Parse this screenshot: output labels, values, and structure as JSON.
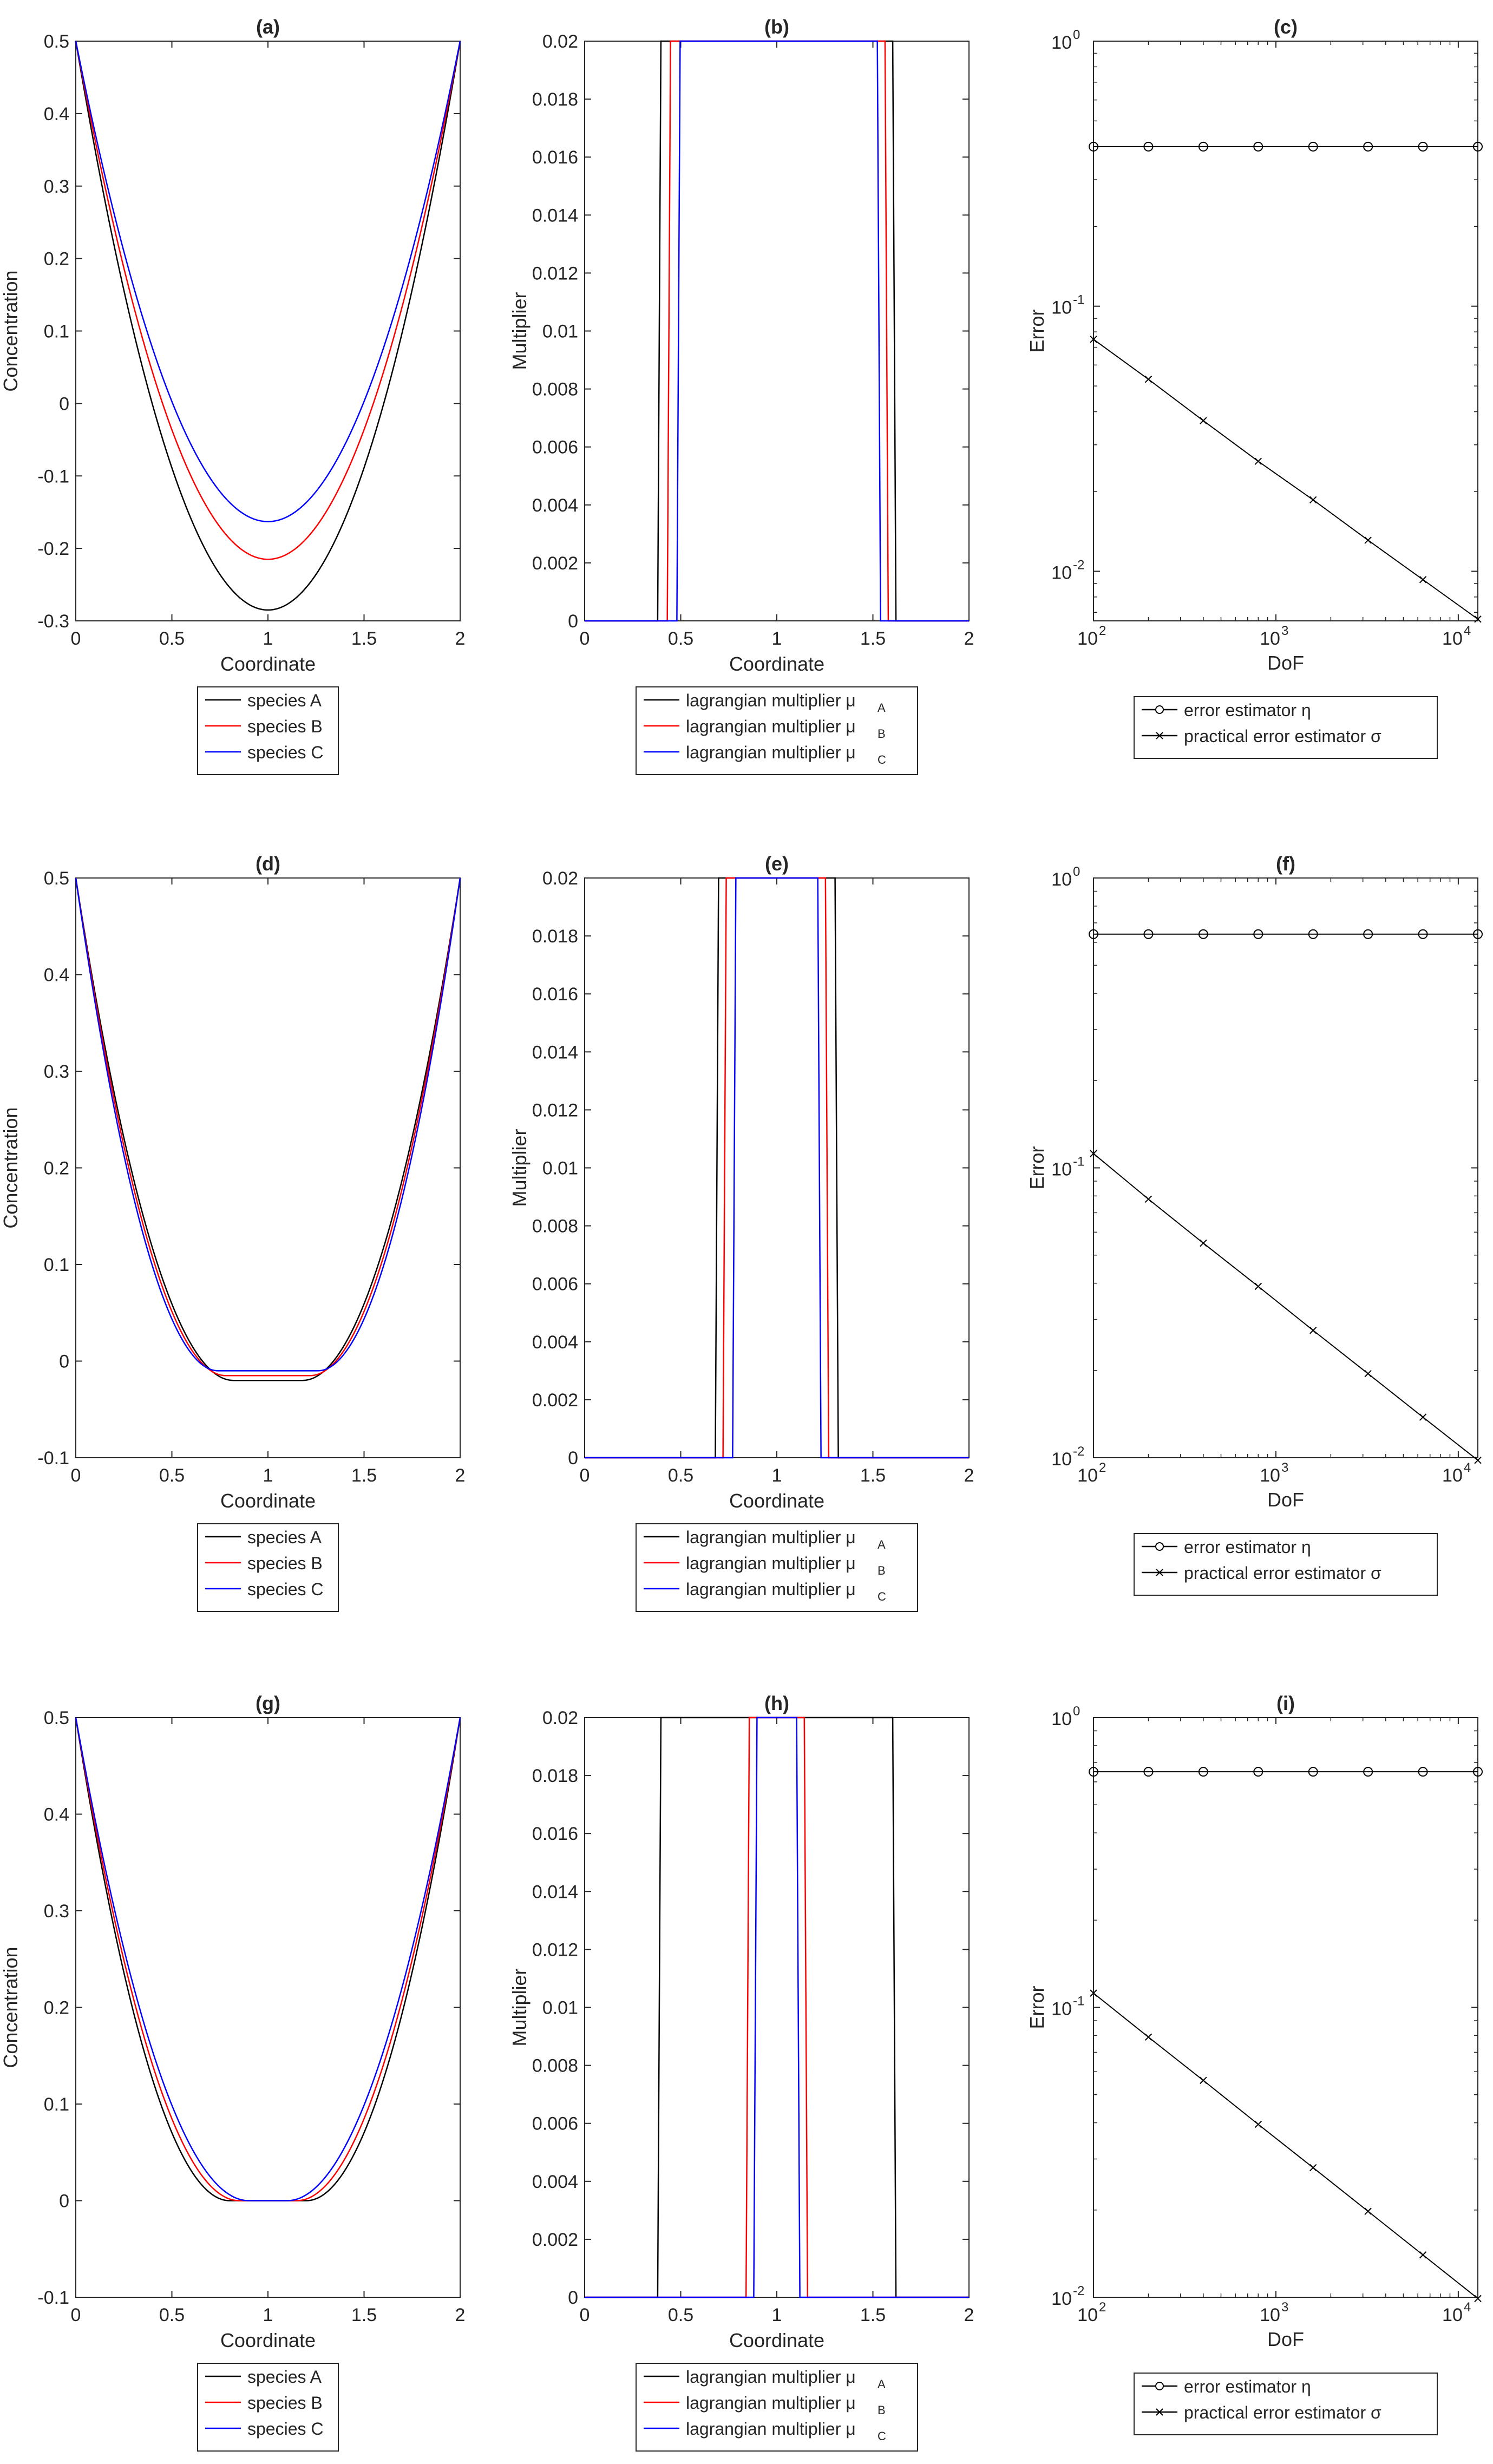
{
  "figure": {
    "colors": {
      "A": "#000000",
      "B": "#ff0000",
      "C": "#0000ff",
      "markers": "#000000"
    }
  },
  "chart_data": [
    {
      "id": "a",
      "type": "line",
      "title": "(a)",
      "xlabel": "Coordinate",
      "ylabel": "Concentration",
      "xlim": [
        0,
        2
      ],
      "ylim": [
        -0.3,
        0.5
      ],
      "xticks": [
        0,
        0.5,
        1,
        1.5,
        2
      ],
      "xtick_labels": [
        "0",
        "0.5",
        "1",
        "1.5",
        "2"
      ],
      "yticks": [
        -0.3,
        -0.2,
        -0.1,
        0,
        0.1,
        0.2,
        0.3,
        0.4,
        0.5
      ],
      "ytick_labels": [
        "-0.3",
        "-0.2",
        "-0.1",
        "0",
        "0.1",
        "0.2",
        "0.3",
        "0.4",
        "0.5"
      ],
      "series": [
        {
          "name": "species A",
          "color": "#000000",
          "kind": "parabola",
          "endpoint": 0.5,
          "minimum": -0.285
        },
        {
          "name": "species B",
          "color": "#ff0000",
          "kind": "parabola",
          "endpoint": 0.5,
          "minimum": -0.215
        },
        {
          "name": "species C",
          "color": "#0000ff",
          "kind": "parabola",
          "endpoint": 0.5,
          "minimum": -0.163
        }
      ],
      "legend": {
        "position": "below",
        "labels": [
          "species A",
          "species B",
          "species C"
        ]
      }
    },
    {
      "id": "b",
      "type": "line",
      "title": "(b)",
      "xlabel": "Coordinate",
      "ylabel": "Multiplier",
      "xlim": [
        0,
        2
      ],
      "ylim": [
        0,
        0.02
      ],
      "xticks": [
        0,
        0.5,
        1,
        1.5,
        2
      ],
      "xtick_labels": [
        "0",
        "0.5",
        "1",
        "1.5",
        "2"
      ],
      "yticks": [
        0,
        0.002,
        0.004,
        0.006,
        0.008,
        0.01,
        0.012,
        0.014,
        0.016,
        0.018,
        0.02
      ],
      "ytick_labels": [
        "0",
        "0.002",
        "0.004",
        "0.006",
        "0.008",
        "0.01",
        "0.012",
        "0.014",
        "0.016",
        "0.018",
        "0.02"
      ],
      "series": [
        {
          "name": "lagrangian multiplier μA",
          "color": "#000000",
          "kind": "step",
          "x_on": 0.38,
          "x_off": 1.62,
          "level": 0.02
        },
        {
          "name": "lagrangian multiplier μB",
          "color": "#ff0000",
          "kind": "step",
          "x_on": 0.43,
          "x_off": 1.58,
          "level": 0.02
        },
        {
          "name": "lagrangian multiplier μC",
          "color": "#0000ff",
          "kind": "step",
          "x_on": 0.48,
          "x_off": 1.54,
          "level": 0.02
        }
      ],
      "legend": {
        "position": "below",
        "labels": [
          "lagrangian multiplier μ",
          "lagrangian multiplier μ",
          "lagrangian multiplier μ"
        ],
        "subscripts": [
          "A",
          "B",
          "C"
        ]
      }
    },
    {
      "id": "c",
      "type": "line",
      "title": "(c)",
      "xlabel": "DoF",
      "ylabel": "Error",
      "log": true,
      "xlim": [
        100,
        12800
      ],
      "ylim": [
        0.0065,
        1
      ],
      "xticks": [
        100,
        1000,
        10000
      ],
      "xtick_labels": [
        "10",
        "10",
        "10"
      ],
      "xtick_exponents": [
        "2",
        "3",
        "4"
      ],
      "yticks": [
        0.01,
        0.1,
        1
      ],
      "ytick_labels": [
        "10",
        "10",
        "10"
      ],
      "ytick_exponents": [
        "-2",
        "-1",
        "0"
      ],
      "series": [
        {
          "name": "error estimator η",
          "marker": "circle",
          "x": [
            100,
            200,
            400,
            800,
            1600,
            3200,
            6400,
            12800
          ],
          "y": [
            0.4,
            0.4,
            0.4,
            0.4,
            0.4,
            0.4,
            0.4,
            0.4
          ]
        },
        {
          "name": "practical error estimator σ",
          "marker": "x",
          "x": [
            100,
            200,
            400,
            800,
            1600,
            3200,
            6400,
            12800
          ],
          "y": [
            0.075,
            0.053,
            0.037,
            0.026,
            0.0186,
            0.0131,
            0.0093,
            0.0066
          ]
        }
      ],
      "legend": {
        "position": "below",
        "labels": [
          "error estimator η",
          "practical error estimator σ"
        ]
      }
    },
    {
      "id": "d",
      "type": "line",
      "title": "(d)",
      "xlabel": "Coordinate",
      "ylabel": "Concentration",
      "xlim": [
        0,
        2
      ],
      "ylim": [
        -0.1,
        0.5
      ],
      "xticks": [
        0,
        0.5,
        1,
        1.5,
        2
      ],
      "xtick_labels": [
        "0",
        "0.5",
        "1",
        "1.5",
        "2"
      ],
      "yticks": [
        -0.1,
        0,
        0.1,
        0.2,
        0.3,
        0.4,
        0.5
      ],
      "ytick_labels": [
        "-0.1",
        "0",
        "0.1",
        "0.2",
        "0.3",
        "0.4",
        "0.5"
      ],
      "series": [
        {
          "name": "species A",
          "color": "#000000",
          "kind": "flatbowl",
          "endpoint": 0.5,
          "minimum": -0.02,
          "flat_half_width": 0.18
        },
        {
          "name": "species B",
          "color": "#ff0000",
          "kind": "flatbowl",
          "endpoint": 0.5,
          "minimum": -0.015,
          "flat_half_width": 0.22
        },
        {
          "name": "species C",
          "color": "#0000ff",
          "kind": "flatbowl",
          "endpoint": 0.5,
          "minimum": -0.01,
          "flat_half_width": 0.26
        }
      ],
      "legend": {
        "position": "below",
        "labels": [
          "species A",
          "species B",
          "species C"
        ]
      }
    },
    {
      "id": "e",
      "type": "line",
      "title": "(e)",
      "xlabel": "Coordinate",
      "ylabel": "Multiplier",
      "xlim": [
        0,
        2
      ],
      "ylim": [
        0,
        0.02
      ],
      "xticks": [
        0,
        0.5,
        1,
        1.5,
        2
      ],
      "xtick_labels": [
        "0",
        "0.5",
        "1",
        "1.5",
        "2"
      ],
      "yticks": [
        0,
        0.002,
        0.004,
        0.006,
        0.008,
        0.01,
        0.012,
        0.014,
        0.016,
        0.018,
        0.02
      ],
      "ytick_labels": [
        "0",
        "0.002",
        "0.004",
        "0.006",
        "0.008",
        "0.01",
        "0.012",
        "0.014",
        "0.016",
        "0.018",
        "0.02"
      ],
      "series": [
        {
          "name": "lagrangian multiplier μA",
          "color": "#000000",
          "kind": "step",
          "x_on": 0.68,
          "x_off": 1.32,
          "level": 0.02
        },
        {
          "name": "lagrangian multiplier μB",
          "color": "#ff0000",
          "kind": "step",
          "x_on": 0.72,
          "x_off": 1.27,
          "level": 0.02
        },
        {
          "name": "lagrangian multiplier μC",
          "color": "#0000ff",
          "kind": "step",
          "x_on": 0.77,
          "x_off": 1.23,
          "level": 0.02
        }
      ],
      "legend": {
        "position": "below",
        "labels": [
          "lagrangian multiplier μ",
          "lagrangian multiplier μ",
          "lagrangian multiplier μ"
        ],
        "subscripts": [
          "A",
          "B",
          "C"
        ]
      }
    },
    {
      "id": "f",
      "type": "line",
      "title": "(f)",
      "xlabel": "DoF",
      "ylabel": "Error",
      "log": true,
      "xlim": [
        100,
        12800
      ],
      "ylim": [
        0.01,
        1
      ],
      "xticks": [
        100,
        1000,
        10000
      ],
      "xtick_labels": [
        "10",
        "10",
        "10"
      ],
      "xtick_exponents": [
        "2",
        "3",
        "4"
      ],
      "yticks": [
        0.01,
        0.1,
        1
      ],
      "ytick_labels": [
        "10",
        "10",
        "10"
      ],
      "ytick_exponents": [
        "-2",
        "-1",
        "0"
      ],
      "series": [
        {
          "name": "error estimator η",
          "marker": "circle",
          "x": [
            100,
            200,
            400,
            800,
            1600,
            3200,
            6400,
            12800
          ],
          "y": [
            0.64,
            0.64,
            0.64,
            0.64,
            0.64,
            0.64,
            0.64,
            0.64
          ]
        },
        {
          "name": "practical error estimator σ",
          "marker": "x",
          "x": [
            100,
            200,
            400,
            800,
            1600,
            3200,
            6400,
            12800
          ],
          "y": [
            0.112,
            0.078,
            0.055,
            0.039,
            0.0275,
            0.0195,
            0.0138,
            0.0098
          ]
        }
      ],
      "legend": {
        "position": "below",
        "labels": [
          "error estimator η",
          "practical error estimator σ"
        ]
      }
    },
    {
      "id": "g",
      "type": "line",
      "title": "(g)",
      "xlabel": "Coordinate",
      "ylabel": "Concentration",
      "xlim": [
        0,
        2
      ],
      "ylim": [
        -0.1,
        0.5
      ],
      "xticks": [
        0,
        0.5,
        1,
        1.5,
        2
      ],
      "xtick_labels": [
        "0",
        "0.5",
        "1",
        "1.5",
        "2"
      ],
      "yticks": [
        -0.1,
        0,
        0.1,
        0.2,
        0.3,
        0.4,
        0.5
      ],
      "ytick_labels": [
        "-0.1",
        "0",
        "0.1",
        "0.2",
        "0.3",
        "0.4",
        "0.5"
      ],
      "series": [
        {
          "name": "species A",
          "color": "#000000",
          "kind": "flatbowl",
          "endpoint": 0.5,
          "minimum": 0,
          "flat_half_width": 0.2
        },
        {
          "name": "species B",
          "color": "#ff0000",
          "kind": "flatbowl",
          "endpoint": 0.5,
          "minimum": 0,
          "flat_half_width": 0.15
        },
        {
          "name": "species C",
          "color": "#0000ff",
          "kind": "flatbowl",
          "endpoint": 0.5,
          "minimum": 0,
          "flat_half_width": 0.1
        }
      ],
      "legend": {
        "position": "below",
        "labels": [
          "species A",
          "species B",
          "species C"
        ]
      }
    },
    {
      "id": "h",
      "type": "line",
      "title": "(h)",
      "xlabel": "Coordinate",
      "ylabel": "Multiplier",
      "xlim": [
        0,
        2
      ],
      "ylim": [
        0,
        0.02
      ],
      "xticks": [
        0,
        0.5,
        1,
        1.5,
        2
      ],
      "xtick_labels": [
        "0",
        "0.5",
        "1",
        "1.5",
        "2"
      ],
      "yticks": [
        0,
        0.002,
        0.004,
        0.006,
        0.008,
        0.01,
        0.012,
        0.014,
        0.016,
        0.018,
        0.02
      ],
      "ytick_labels": [
        "0",
        "0.002",
        "0.004",
        "0.006",
        "0.008",
        "0.01",
        "0.012",
        "0.014",
        "0.016",
        "0.018",
        "0.02"
      ],
      "series": [
        {
          "name": "lagrangian multiplier μA",
          "color": "#000000",
          "kind": "step",
          "x_on": 0.38,
          "x_off": 1.62,
          "level": 0.02
        },
        {
          "name": "lagrangian multiplier μB",
          "color": "#ff0000",
          "kind": "step",
          "x_on": 0.84,
          "x_off": 1.16,
          "level": 0.02
        },
        {
          "name": "lagrangian multiplier μC",
          "color": "#0000ff",
          "kind": "step",
          "x_on": 0.88,
          "x_off": 1.12,
          "level": 0.02
        }
      ],
      "legend": {
        "position": "below",
        "labels": [
          "lagrangian multiplier μ",
          "lagrangian multiplier μ",
          "lagrangian multiplier μ"
        ],
        "subscripts": [
          "A",
          "B",
          "C"
        ]
      }
    },
    {
      "id": "i",
      "type": "line",
      "title": "(i)",
      "xlabel": "DoF",
      "ylabel": "Error",
      "log": true,
      "xlim": [
        100,
        12800
      ],
      "ylim": [
        0.01,
        1
      ],
      "xticks": [
        100,
        1000,
        10000
      ],
      "xtick_labels": [
        "10",
        "10",
        "10"
      ],
      "xtick_exponents": [
        "2",
        "3",
        "4"
      ],
      "yticks": [
        0.01,
        0.1,
        1
      ],
      "ytick_labels": [
        "10",
        "10",
        "10"
      ],
      "ytick_exponents": [
        "-2",
        "-1",
        "0"
      ],
      "series": [
        {
          "name": "error estimator η",
          "marker": "circle",
          "x": [
            100,
            200,
            400,
            800,
            1600,
            3200,
            6400,
            12800
          ],
          "y": [
            0.65,
            0.65,
            0.65,
            0.65,
            0.65,
            0.65,
            0.65,
            0.65
          ]
        },
        {
          "name": "practical error estimator σ",
          "marker": "x",
          "x": [
            100,
            200,
            400,
            800,
            1600,
            3200,
            6400,
            12800
          ],
          "y": [
            0.112,
            0.079,
            0.056,
            0.0395,
            0.028,
            0.0198,
            0.014,
            0.0099
          ]
        }
      ],
      "legend": {
        "position": "below",
        "labels": [
          "error estimator η",
          "practical error estimator σ"
        ]
      }
    }
  ]
}
